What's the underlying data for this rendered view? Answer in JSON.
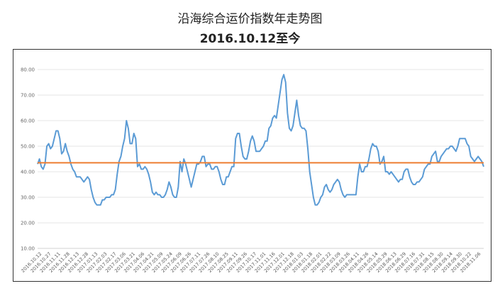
{
  "header": {
    "title": "沿海综合运价指数年走势图",
    "subtitle": "2016.10.12至今"
  },
  "chart_data": {
    "type": "line",
    "title": "沿海综合运价指数年走势图",
    "subtitle": "2016.10.12至今",
    "ylim": [
      10,
      80
    ],
    "yticks": [
      "10.00",
      "20.00",
      "30.00",
      "40.00",
      "50.00",
      "60.00",
      "70.00",
      "80.00"
    ],
    "grid": true,
    "x_labels": [
      "2016.10.12",
      "2016.10.27",
      "2016.11.11",
      "2016.11.28",
      "2016.12.13",
      "2016.12.28",
      "2017.01.13",
      "2017.02.03",
      "2017.02.17",
      "2017.03.06",
      "2017.03.21",
      "2017.04.06",
      "2017.04.21",
      "2017.05.09",
      "2017.05.24",
      "2017.06.09",
      "2017.06.26",
      "2017.07.11",
      "2017.07.26",
      "2017.08.10",
      "2017.08.25",
      "2017.09.11",
      "2017.09.26",
      "2017.10.17",
      "2017.11.01",
      "2017.11.16",
      "2017.12.01",
      "2017.12.18",
      "2018.01.03",
      "2018.01.18",
      "2018.02.01",
      "2018.02.22",
      "2018.03.09",
      "2018.03.26",
      "2018.04.11",
      "2018.04.26",
      "2018.05.14",
      "2018.05.29",
      "2018.06.13",
      "2018.06.29",
      "2018.07.16",
      "2018.07.31",
      "2018.08.15",
      "2018.08.30",
      "2018.09.14",
      "2018.09.30",
      "2018.10.22",
      "2018.11.06"
    ],
    "series": [
      {
        "color": "#5b9bd5",
        "values": [
          43,
          45,
          42,
          41,
          43,
          50,
          51,
          49,
          50,
          53,
          56,
          56,
          53,
          47,
          48,
          51,
          48,
          46,
          43,
          41,
          40,
          38,
          38,
          38,
          37,
          36,
          37,
          38,
          37,
          33,
          30,
          28,
          27,
          27,
          27,
          29,
          29,
          30,
          30,
          30,
          31,
          31,
          33,
          39,
          44,
          46,
          50,
          53,
          60,
          57,
          51,
          51,
          55,
          53,
          42,
          43,
          41,
          41,
          42,
          41,
          39,
          36,
          32,
          31,
          32,
          31,
          31,
          30,
          30,
          31,
          33,
          36,
          34,
          31,
          30,
          30,
          34,
          44,
          40,
          45,
          43,
          40,
          37,
          34,
          37,
          40,
          43,
          43,
          44,
          46,
          46,
          42,
          43,
          43,
          41,
          41,
          42,
          42,
          40,
          37,
          35,
          35,
          38,
          38,
          40,
          42,
          42,
          53,
          55,
          55,
          50,
          46,
          45,
          45,
          48,
          52,
          54,
          52,
          48,
          48,
          48,
          49,
          50,
          52,
          52,
          57,
          58,
          61,
          62,
          61,
          66,
          71,
          76,
          78,
          75,
          63,
          57,
          56,
          58,
          63,
          68,
          62,
          58,
          57,
          57,
          56,
          49,
          40,
          35,
          30,
          27,
          27,
          28,
          30,
          31,
          34,
          35,
          33,
          32,
          33,
          35,
          36,
          37,
          36,
          33,
          31,
          30,
          31,
          31,
          31,
          31,
          31,
          31,
          38,
          43,
          40,
          40,
          42,
          42,
          45,
          49,
          51,
          50,
          50,
          48,
          43,
          44,
          46,
          40,
          40,
          39,
          40,
          39,
          38,
          37,
          36,
          37,
          37,
          40,
          41,
          41,
          38,
          36,
          35,
          35,
          36,
          36,
          37,
          38,
          41,
          42,
          43,
          43,
          46,
          47,
          48,
          44,
          44,
          46,
          47,
          48,
          49,
          49,
          50,
          50,
          49,
          48,
          50,
          53,
          53,
          53,
          53,
          51,
          50,
          46,
          45,
          44,
          45,
          46,
          45,
          44,
          42
        ]
      },
      {
        "color": "#ed7d31",
        "values": [
          43.5
        ]
      }
    ]
  }
}
